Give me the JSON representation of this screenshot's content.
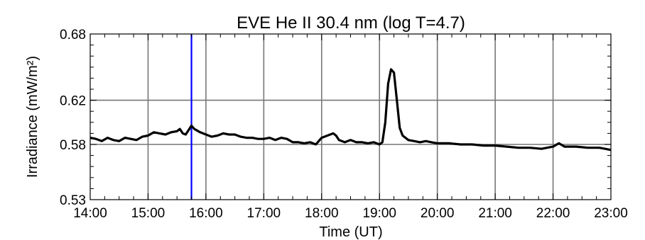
{
  "chart_data": {
    "type": "line",
    "title": "EVE He II 30.4 nm (log T=4.7)",
    "xlabel": "Time (UT)",
    "ylabel": "Irradiance (mW/m²)",
    "xlim": [
      14,
      23
    ],
    "ylim": [
      0.53,
      0.68
    ],
    "x_ticks": [
      14,
      15,
      16,
      17,
      18,
      19,
      20,
      21,
      22,
      23
    ],
    "x_tick_labels": [
      "14:00",
      "15:00",
      "16:00",
      "17:00",
      "18:00",
      "19:00",
      "20:00",
      "21:00",
      "22:00",
      "23:00"
    ],
    "y_ticks": [
      0.53,
      0.58,
      0.62,
      0.68
    ],
    "y_tick_labels": [
      "0.53",
      "0.58",
      "0.62",
      "0.68"
    ],
    "grid": true,
    "marker_line": {
      "x": 15.75,
      "color": "#0000ff"
    },
    "series": [
      {
        "color": "#000000",
        "x": [
          14.0,
          14.1,
          14.2,
          14.3,
          14.4,
          14.5,
          14.6,
          14.7,
          14.8,
          14.9,
          15.0,
          15.1,
          15.2,
          15.3,
          15.4,
          15.5,
          15.55,
          15.6,
          15.65,
          15.7,
          15.75,
          15.8,
          15.9,
          16.0,
          16.1,
          16.2,
          16.3,
          16.4,
          16.5,
          16.6,
          16.7,
          16.8,
          16.9,
          17.0,
          17.1,
          17.2,
          17.3,
          17.4,
          17.5,
          17.6,
          17.7,
          17.8,
          17.9,
          17.95,
          18.0,
          18.1,
          18.2,
          18.25,
          18.3,
          18.4,
          18.5,
          18.6,
          18.7,
          18.8,
          18.9,
          19.0,
          19.05,
          19.1,
          19.15,
          19.2,
          19.25,
          19.3,
          19.35,
          19.4,
          19.5,
          19.6,
          19.7,
          19.8,
          19.9,
          20.0,
          20.2,
          20.4,
          20.6,
          20.8,
          21.0,
          21.2,
          21.4,
          21.6,
          21.8,
          22.0,
          22.1,
          22.2,
          22.4,
          22.6,
          22.8,
          22.9,
          23.0
        ],
        "values": [
          0.586,
          0.585,
          0.583,
          0.586,
          0.584,
          0.583,
          0.586,
          0.585,
          0.584,
          0.587,
          0.588,
          0.591,
          0.59,
          0.589,
          0.591,
          0.592,
          0.594,
          0.59,
          0.589,
          0.593,
          0.597,
          0.594,
          0.591,
          0.589,
          0.587,
          0.588,
          0.59,
          0.589,
          0.589,
          0.587,
          0.586,
          0.586,
          0.585,
          0.585,
          0.586,
          0.584,
          0.586,
          0.585,
          0.582,
          0.582,
          0.581,
          0.582,
          0.58,
          0.583,
          0.586,
          0.588,
          0.59,
          0.588,
          0.584,
          0.582,
          0.584,
          0.582,
          0.582,
          0.581,
          0.582,
          0.58,
          0.582,
          0.6,
          0.635,
          0.648,
          0.645,
          0.62,
          0.595,
          0.588,
          0.584,
          0.583,
          0.582,
          0.583,
          0.582,
          0.581,
          0.581,
          0.58,
          0.58,
          0.579,
          0.579,
          0.578,
          0.577,
          0.577,
          0.576,
          0.578,
          0.581,
          0.578,
          0.578,
          0.577,
          0.577,
          0.576,
          0.575
        ]
      }
    ]
  }
}
